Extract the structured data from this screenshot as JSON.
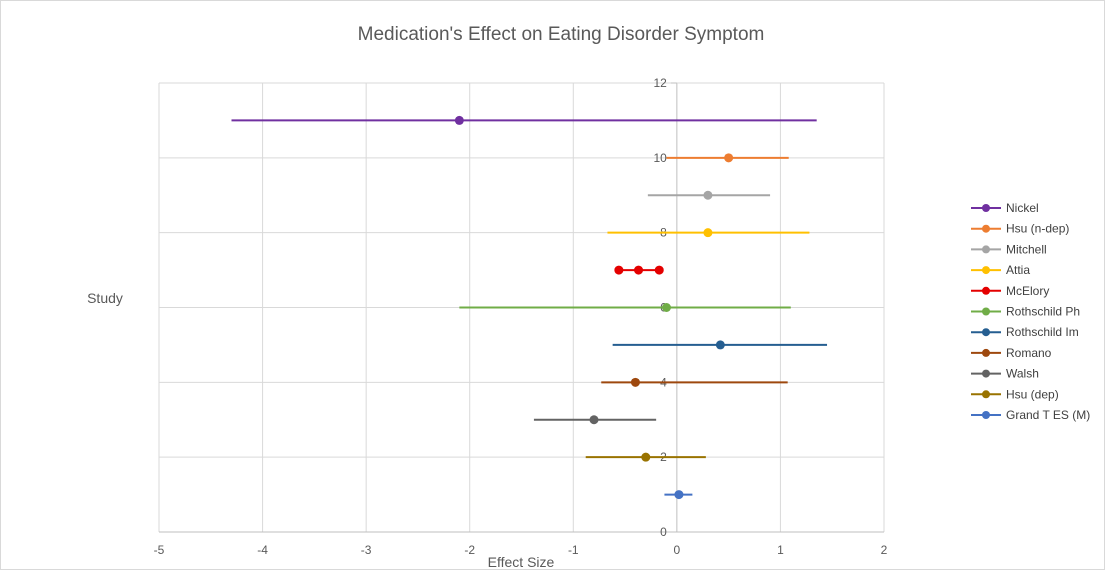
{
  "chart_data": {
    "type": "scatter",
    "title": "Medication's Effect on Eating Disorder Symptom",
    "xlabel": "Effect Size",
    "ylabel": "Study",
    "xlim": [
      -5,
      2
    ],
    "ylim": [
      0,
      12
    ],
    "x_ticks": [
      -5,
      -4,
      -3,
      -2,
      -1,
      0,
      1,
      2
    ],
    "y_ticks": [
      0,
      2,
      4,
      6,
      8,
      10,
      12
    ],
    "grid": true,
    "legend_position": "right",
    "series": [
      {
        "name": "Nickel",
        "color": "#7030a0",
        "y": 11,
        "x": -2.1,
        "low": -4.3,
        "high": 1.35,
        "points": [
          -2.1
        ]
      },
      {
        "name": "Hsu (n-dep)",
        "color": "#ed7d31",
        "y": 10,
        "x": 0.5,
        "low": -0.1,
        "high": 1.08,
        "points": [
          0.5
        ]
      },
      {
        "name": "Mitchell",
        "color": "#a5a5a5",
        "y": 9,
        "x": 0.3,
        "low": -0.28,
        "high": 0.9,
        "points": [
          0.3
        ]
      },
      {
        "name": "Attia",
        "color": "#ffc000",
        "y": 8,
        "x": 0.3,
        "low": -0.67,
        "high": 1.28,
        "points": [
          0.3
        ]
      },
      {
        "name": "McElory",
        "color": "#e40000",
        "y": 7,
        "x": -0.37,
        "low": -0.56,
        "high": -0.17,
        "points": [
          -0.56,
          -0.37,
          -0.17
        ]
      },
      {
        "name": "Rothschild Ph",
        "color": "#70ad47",
        "y": 6,
        "x": -0.1,
        "low": -2.1,
        "high": 1.1,
        "points": [
          -0.1
        ]
      },
      {
        "name": "Rothschild Im",
        "color": "#255e91",
        "y": 5,
        "x": 0.42,
        "low": -0.62,
        "high": 1.45,
        "points": [
          0.42
        ]
      },
      {
        "name": "Romano",
        "color": "#9e480e",
        "y": 4,
        "x": -0.4,
        "low": -0.73,
        "high": 1.07,
        "points": [
          -0.4
        ]
      },
      {
        "name": "Walsh",
        "color": "#636363",
        "y": 3,
        "x": -0.8,
        "low": -1.38,
        "high": -0.2,
        "points": [
          -0.8
        ]
      },
      {
        "name": "Hsu (dep)",
        "color": "#997300",
        "y": 2,
        "x": -0.3,
        "low": -0.88,
        "high": 0.28,
        "points": [
          -0.3
        ]
      },
      {
        "name": "Grand T ES (M)",
        "color": "#4472c4",
        "y": 1,
        "x": 0.02,
        "low": -0.12,
        "high": 0.15,
        "points": [
          0.02
        ]
      }
    ]
  }
}
